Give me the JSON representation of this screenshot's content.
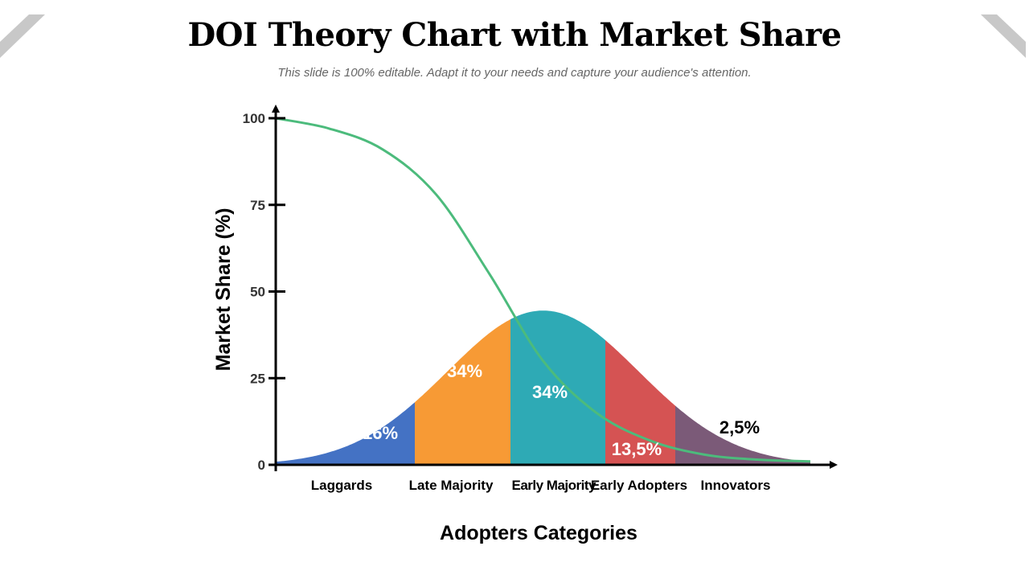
{
  "header": {
    "title": "DOI Theory Chart with Market Share",
    "subtitle": "This slide is 100% editable. Adapt it to your needs and capture your audience's attention."
  },
  "colors": {
    "corner_decor": "#c8c8c8",
    "market_share_line": "#4cbb7c",
    "axis": "#000000"
  },
  "chart_data": {
    "type": "area",
    "xlabel": "Adopters Categories",
    "ylabel": "Market Share (%)",
    "ylim": [
      0,
      100
    ],
    "yticks": [
      0,
      25,
      50,
      75,
      100
    ],
    "grid": false,
    "categories": [
      "Laggards",
      "Late Majority",
      "Early Majority",
      "Early Adopters",
      "Innovators"
    ],
    "segments": [
      {
        "category": "Laggards",
        "label": "16%",
        "color": "#4472c4"
      },
      {
        "category": "Late Majority",
        "label": "34%",
        "color": "#f79a35"
      },
      {
        "category": "Early Majority",
        "label": "34%",
        "color": "#2eaab5"
      },
      {
        "category": "Early Adopters",
        "label": "13,5%",
        "color": "#d55353"
      },
      {
        "category": "Innovators",
        "label": "2,5%",
        "color": "#7b5a78"
      }
    ],
    "bell_peak": 44.5,
    "market_share_curve": {
      "color": "#4cbb7c",
      "points": [
        [
          0,
          100
        ],
        [
          0.5,
          97
        ],
        [
          1,
          91
        ],
        [
          1.5,
          78
        ],
        [
          2,
          55
        ],
        [
          2.5,
          30
        ],
        [
          3,
          15
        ],
        [
          3.5,
          7
        ],
        [
          4,
          3
        ],
        [
          4.5,
          1.5
        ],
        [
          5,
          1
        ]
      ]
    }
  }
}
